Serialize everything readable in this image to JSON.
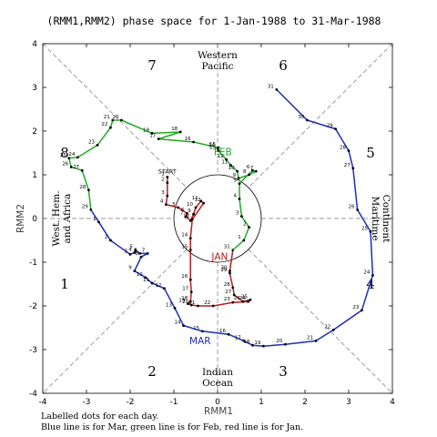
{
  "chart_data": {
    "type": "line",
    "title": "(RMM1,RMM2) phase space for  1-Jan-1988 to 31-Mar-1988",
    "xlabel": "RMM1",
    "ylabel": "RMM2",
    "xlim": [
      -4,
      4
    ],
    "ylim": [
      -4,
      4
    ],
    "xticks": [
      -4,
      -3,
      -2,
      -1,
      0,
      1,
      2,
      3,
      4
    ],
    "yticks": [
      -4,
      -3,
      -2,
      -1,
      0,
      1,
      2,
      3,
      4
    ],
    "grid": false,
    "unit_circle_radius": 1,
    "phase_numbers": [
      {
        "label": "1",
        "x": -3.5,
        "y": -1.5
      },
      {
        "label": "2",
        "x": -1.5,
        "y": -3.5
      },
      {
        "label": "3",
        "x": 1.5,
        "y": -3.5
      },
      {
        "label": "4",
        "x": 3.5,
        "y": -1.5
      },
      {
        "label": "5",
        "x": 3.5,
        "y": 1.5
      },
      {
        "label": "6",
        "x": 1.5,
        "y": 3.5
      },
      {
        "label": "7",
        "x": -1.5,
        "y": 3.5
      },
      {
        "label": "8",
        "x": -3.5,
        "y": 1.5
      }
    ],
    "region_labels": {
      "top": [
        "Western",
        "Pacific"
      ],
      "bottom": [
        "Indian",
        "Ocean"
      ],
      "left": [
        "West. Hem.",
        "and Africa"
      ],
      "right": [
        "Maritime",
        "Continent"
      ]
    },
    "series": [
      {
        "name": "JAN",
        "color": "#b81c1c",
        "start_label": "START",
        "points": [
          {
            "x": -1.15,
            "y": 0.95,
            "d": "1"
          },
          {
            "x": -1.15,
            "y": 0.82,
            "d": "2"
          },
          {
            "x": -1.15,
            "y": 0.52,
            "d": "3"
          },
          {
            "x": -1.18,
            "y": 0.32,
            "d": "4"
          },
          {
            "x": -0.9,
            "y": 0.25,
            "d": "5"
          },
          {
            "x": -0.7,
            "y": 0.12,
            "d": "6"
          },
          {
            "x": -0.72,
            "y": 0.05,
            "d": "7"
          },
          {
            "x": -0.62,
            "y": -0.05,
            "d": "8"
          },
          {
            "x": -0.55,
            "y": 0.1,
            "d": "9"
          },
          {
            "x": -0.5,
            "y": 0.25,
            "d": "10"
          },
          {
            "x": -0.38,
            "y": 0.4,
            "d": "11"
          },
          {
            "x": -0.32,
            "y": 0.35,
            "d": "12"
          },
          {
            "x": -0.58,
            "y": -0.02,
            "d": "13"
          },
          {
            "x": -0.62,
            "y": -0.45,
            "d": "14"
          },
          {
            "x": -0.62,
            "y": -0.72,
            "d": "15"
          },
          {
            "x": -0.62,
            "y": -1.4,
            "d": "16"
          },
          {
            "x": -0.6,
            "y": -1.68,
            "d": "17"
          },
          {
            "x": -0.62,
            "y": -1.9,
            "d": "18"
          },
          {
            "x": -0.68,
            "y": -1.95,
            "d": "19"
          },
          {
            "x": -0.6,
            "y": -1.98,
            "d": "20"
          },
          {
            "x": -0.45,
            "y": -2.0,
            "d": "21"
          },
          {
            "x": -0.1,
            "y": -2.0,
            "d": "22"
          },
          {
            "x": 0.35,
            "y": -1.92,
            "d": "23"
          },
          {
            "x": 0.7,
            "y": -1.9,
            "d": "24"
          },
          {
            "x": 0.75,
            "y": -1.86,
            "d": "25"
          },
          {
            "x": 0.58,
            "y": -1.9,
            "d": "26"
          },
          {
            "x": 0.38,
            "y": -1.75,
            "d": "27"
          },
          {
            "x": 0.35,
            "y": -1.58,
            "d": "28"
          },
          {
            "x": 0.28,
            "y": -1.25,
            "d": "29"
          },
          {
            "x": 0.28,
            "y": -1.2,
            "d": "30"
          },
          {
            "x": 0.35,
            "y": -0.72,
            "d": "31"
          }
        ]
      },
      {
        "name": "FEB",
        "color": "#22aa22",
        "points": [
          {
            "x": 0.35,
            "y": -0.72,
            "d": ""
          },
          {
            "x": 0.6,
            "y": -0.5,
            "d": "1"
          },
          {
            "x": 0.72,
            "y": -0.2,
            "d": "2"
          },
          {
            "x": 0.55,
            "y": 0.05,
            "d": "3"
          },
          {
            "x": 0.5,
            "y": 0.45,
            "d": "4"
          },
          {
            "x": 0.5,
            "y": 0.8,
            "d": "5"
          },
          {
            "x": 0.8,
            "y": 1.1,
            "d": "6"
          },
          {
            "x": 0.88,
            "y": 1.08,
            "d": "7"
          },
          {
            "x": 0.72,
            "y": 1.0,
            "d": "8"
          },
          {
            "x": 0.48,
            "y": 0.92,
            "d": "9"
          },
          {
            "x": 0.45,
            "y": 1.08,
            "d": "10"
          },
          {
            "x": 0.3,
            "y": 1.22,
            "d": "11"
          },
          {
            "x": 0.2,
            "y": 1.35,
            "d": "12"
          },
          {
            "x": 0.02,
            "y": 1.55,
            "d": "13"
          },
          {
            "x": 0.0,
            "y": 1.6,
            "d": "14"
          },
          {
            "x": 0.02,
            "y": 1.62,
            "d": "15"
          },
          {
            "x": -0.55,
            "y": 1.75,
            "d": "16"
          },
          {
            "x": -1.35,
            "y": 1.82,
            "d": "17"
          },
          {
            "x": -0.85,
            "y": 1.98,
            "d": "18"
          },
          {
            "x": -1.5,
            "y": 1.95,
            "d": "19"
          },
          {
            "x": -2.2,
            "y": 2.25,
            "d": "20"
          },
          {
            "x": -2.4,
            "y": 2.25,
            "d": "21"
          },
          {
            "x": -2.45,
            "y": 2.08,
            "d": "22"
          },
          {
            "x": -2.75,
            "y": 1.68,
            "d": "23"
          },
          {
            "x": -3.2,
            "y": 1.4,
            "d": "24"
          },
          {
            "x": -3.4,
            "y": 1.38,
            "d": "25"
          },
          {
            "x": -3.35,
            "y": 1.18,
            "d": "26"
          },
          {
            "x": -3.1,
            "y": 1.1,
            "d": "27"
          },
          {
            "x": -2.95,
            "y": 0.65,
            "d": "28"
          },
          {
            "x": -2.9,
            "y": 0.2,
            "d": "29"
          }
        ]
      },
      {
        "name": "MAR",
        "color": "#1c2dc0",
        "points": [
          {
            "x": -2.9,
            "y": 0.2,
            "d": ""
          },
          {
            "x": -2.72,
            "y": -0.08,
            "d": "1"
          },
          {
            "x": -2.45,
            "y": -0.5,
            "d": "2"
          },
          {
            "x": -2.0,
            "y": -0.82,
            "d": "3"
          },
          {
            "x": -1.9,
            "y": -0.78,
            "d": "4"
          },
          {
            "x": -1.88,
            "y": -0.72,
            "d": "5"
          },
          {
            "x": -1.78,
            "y": -0.8,
            "d": "6"
          },
          {
            "x": -1.6,
            "y": -0.8,
            "d": "7"
          },
          {
            "x": -1.75,
            "y": -0.88,
            "d": "8"
          },
          {
            "x": -1.9,
            "y": -1.2,
            "d": "9"
          },
          {
            "x": -1.65,
            "y": -1.35,
            "d": "10"
          },
          {
            "x": -1.5,
            "y": -1.48,
            "d": "11"
          },
          {
            "x": -1.22,
            "y": -1.6,
            "d": "12"
          },
          {
            "x": -0.98,
            "y": -2.05,
            "d": "13"
          },
          {
            "x": -0.78,
            "y": -2.45,
            "d": "14"
          },
          {
            "x": -0.35,
            "y": -2.58,
            "d": "15"
          },
          {
            "x": 0.25,
            "y": -2.65,
            "d": "16"
          },
          {
            "x": 0.6,
            "y": -2.8,
            "d": "17"
          },
          {
            "x": 0.8,
            "y": -2.9,
            "d": "18"
          },
          {
            "x": 1.05,
            "y": -2.92,
            "d": "19"
          },
          {
            "x": 1.55,
            "y": -2.88,
            "d": "20"
          },
          {
            "x": 2.25,
            "y": -2.8,
            "d": "21"
          },
          {
            "x": 2.65,
            "y": -2.55,
            "d": "22"
          },
          {
            "x": 3.3,
            "y": -2.1,
            "d": "23"
          },
          {
            "x": 3.55,
            "y": -1.3,
            "d": "24"
          },
          {
            "x": 3.5,
            "y": -0.3,
            "d": "25"
          },
          {
            "x": 3.2,
            "y": 0.2,
            "d": "26"
          },
          {
            "x": 3.1,
            "y": 1.15,
            "d": "27"
          },
          {
            "x": 3.0,
            "y": 1.55,
            "d": "28"
          },
          {
            "x": 2.7,
            "y": 2.05,
            "d": "29"
          },
          {
            "x": 2.05,
            "y": 2.25,
            "d": "30"
          },
          {
            "x": 1.35,
            "y": 2.95,
            "d": "31"
          }
        ]
      }
    ],
    "footnotes": [
      "Labelled dots for each day.",
      "Blue line is for Mar, green line is for Feb, red line is for Jan."
    ]
  }
}
